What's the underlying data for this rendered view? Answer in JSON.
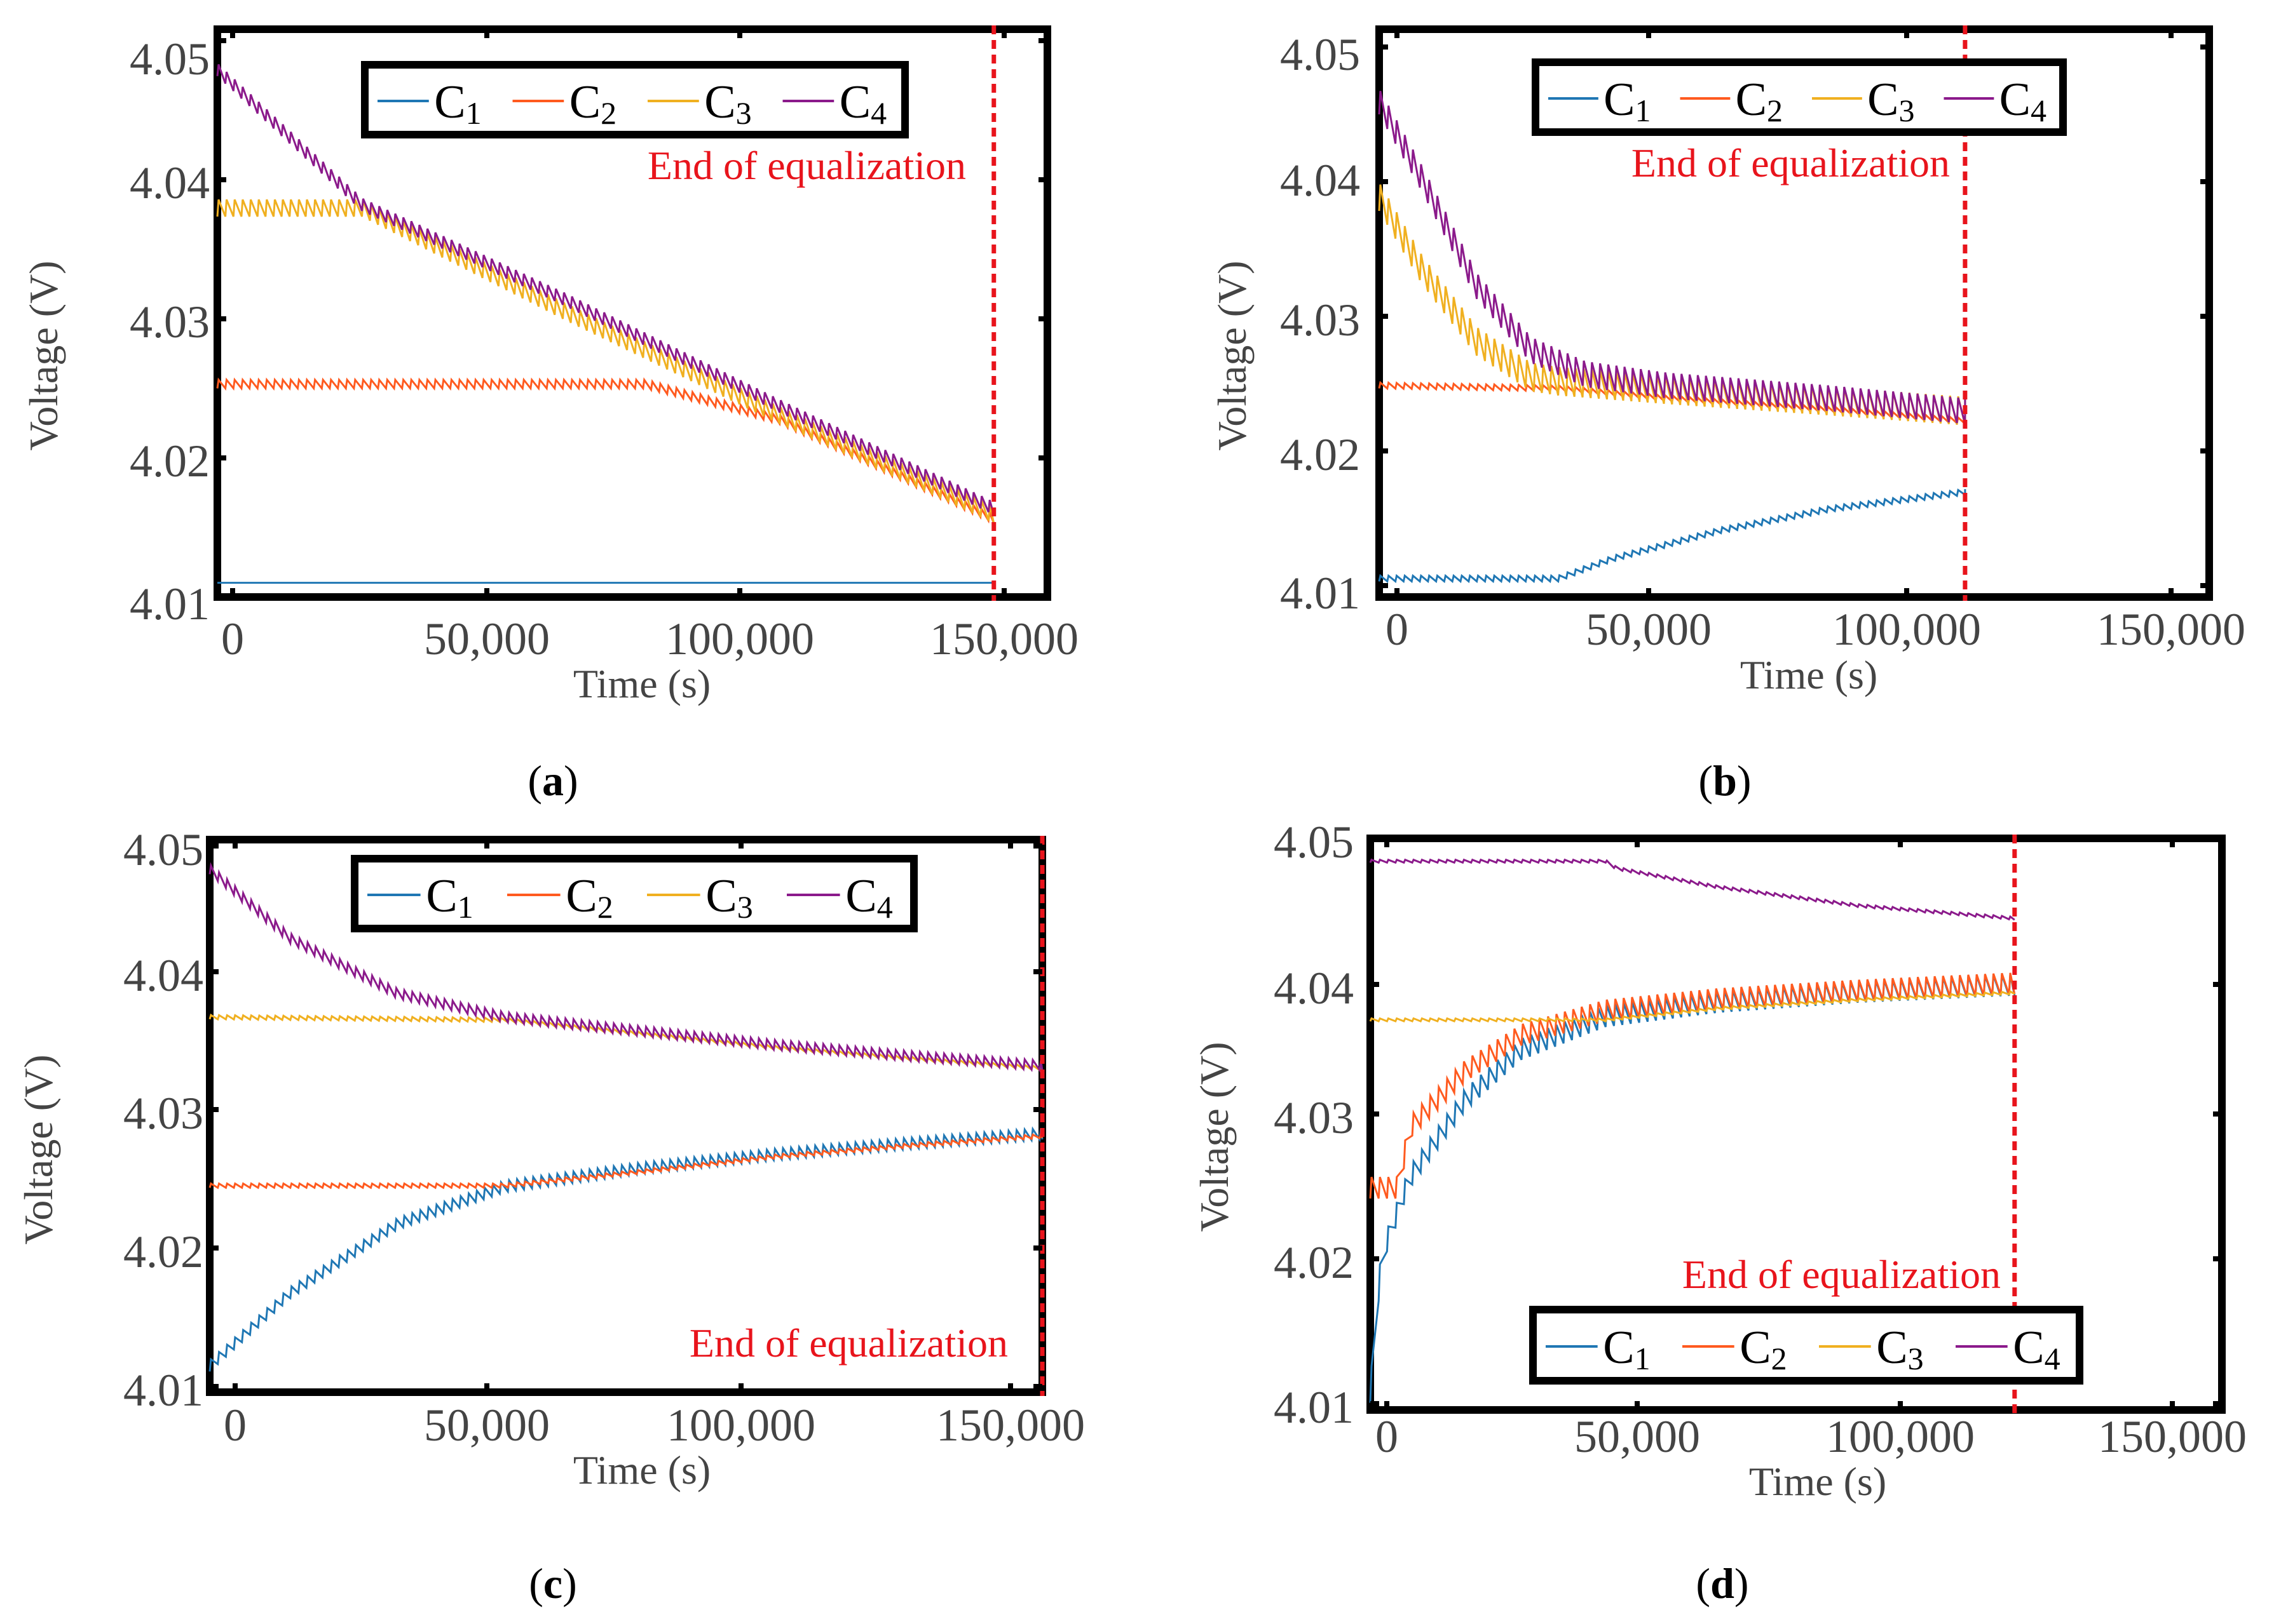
{
  "colors": {
    "C1": "#1f77b4",
    "C2": "#ff5a1f",
    "C3": "#f0b020",
    "C4": "#8b1a8b",
    "end_line": "#e8141c"
  },
  "chart_data": [
    {
      "panel": "a",
      "type": "line",
      "caption": "a",
      "xlabel": "Time  (s)",
      "ylabel": "Voltage  (V)",
      "xlim": [
        -5000,
        150000
      ],
      "ylim": [
        4.01,
        4.05
      ],
      "xticks": [
        "0",
        "50,000",
        "100,000",
        "150,000"
      ],
      "yticks": [
        "4.01",
        "4.02",
        "4.03",
        "4.04",
        "4.05"
      ],
      "legend": [
        "C1",
        "C2",
        "C3",
        "C4"
      ],
      "legend_position": "top",
      "annotation": "End of equalization",
      "end_time": 140000,
      "series": [
        {
          "name": "C1",
          "x": [
            -5000,
            140000
          ],
          "y": [
            4.011,
            4.011
          ],
          "oscillation": 0
        },
        {
          "name": "C2",
          "x": [
            -5000,
            75000,
            100000,
            140000
          ],
          "y": [
            4.0247,
            4.0247,
            4.0222,
            4.0152
          ],
          "oscillation": 0.0006
        },
        {
          "name": "C3",
          "x": [
            -5000,
            22000,
            60000,
            100000,
            140000
          ],
          "y": [
            4.0368,
            4.0368,
            4.0295,
            4.0222,
            4.0152
          ],
          "oscillation": 0.0012
        },
        {
          "name": "C4",
          "x": [
            -5000,
            22000,
            60000,
            100000,
            140000
          ],
          "y": [
            4.0467,
            4.0372,
            4.0305,
            4.023,
            4.0158
          ],
          "oscillation": 0.0009
        }
      ]
    },
    {
      "panel": "b",
      "type": "line",
      "caption": "b",
      "xlabel": "Time  (s)",
      "ylabel": "Voltage  (V)",
      "xlim": [
        -3000,
        150000
      ],
      "ylim": [
        4.01,
        4.05
      ],
      "xticks": [
        "0",
        "50,000",
        "100,000",
        "150,000"
      ],
      "yticks": [
        "4.01",
        "4.02",
        "4.03",
        "4.04",
        "4.05"
      ],
      "legend": [
        "C1",
        "C2",
        "C3",
        "C4"
      ],
      "legend_position": "top",
      "annotation": "End of equalization",
      "end_time": 105000,
      "series": [
        {
          "name": "C1",
          "x": [
            -3000,
            30000,
            40000,
            60000,
            80000,
            105000
          ],
          "y": [
            4.0111,
            4.0111,
            4.0125,
            4.0145,
            4.016,
            4.0172
          ],
          "oscillation": 0.0004
        },
        {
          "name": "C2",
          "x": [
            -3000,
            30000,
            50000,
            80000,
            105000
          ],
          "y": [
            4.0247,
            4.0245,
            4.0238,
            4.023,
            4.0222
          ],
          "oscillation": 0.0004
        },
        {
          "name": "C3",
          "x": [
            -3000,
            5000,
            15000,
            25000,
            30000,
            50000,
            80000,
            105000
          ],
          "y": [
            4.0372,
            4.032,
            4.027,
            4.0245,
            4.0242,
            4.0236,
            4.0228,
            4.0221
          ],
          "oscillation": 0.002
        },
        {
          "name": "C4",
          "x": [
            -3000,
            5000,
            15000,
            25000,
            35000,
            50000,
            80000,
            105000
          ],
          "y": [
            4.044,
            4.0385,
            4.031,
            4.0265,
            4.0248,
            4.024,
            4.0231,
            4.0222
          ],
          "oscillation": 0.0018
        }
      ]
    },
    {
      "panel": "c",
      "type": "line",
      "caption": "c",
      "xlabel": "Time  (s)",
      "ylabel": "Voltage  (V)",
      "xlim": [
        -5000,
        150000
      ],
      "ylim": [
        4.01,
        4.05
      ],
      "xticks": [
        "0",
        "50,000",
        "100,000",
        "150,000"
      ],
      "yticks": [
        "4.01",
        "4.02",
        "4.03",
        "4.04",
        "4.05"
      ],
      "legend": [
        "C1",
        "C2",
        "C3",
        "C4"
      ],
      "legend_position": "top",
      "annotation": "End of equalization",
      "end_time": 150000,
      "series": [
        {
          "name": "C1",
          "x": [
            -5000,
            10000,
            30000,
            50000,
            75000,
            100000,
            125000,
            150000
          ],
          "y": [
            4.0115,
            4.0168,
            4.0218,
            4.0245,
            4.0258,
            4.0268,
            4.0276,
            4.0283
          ],
          "oscillation": 0.0008
        },
        {
          "name": "C2",
          "x": [
            -5000,
            50000,
            75000,
            100000,
            125000,
            150000
          ],
          "y": [
            4.0248,
            4.0248,
            4.0258,
            4.0269,
            4.0277,
            4.0284
          ],
          "oscillation": 0.0003
        },
        {
          "name": "C3",
          "x": [
            -5000,
            50000,
            75000,
            100000,
            125000,
            150000
          ],
          "y": [
            4.037,
            4.0368,
            4.0358,
            4.0348,
            4.034,
            4.0333
          ],
          "oscillation": 0.0003
        },
        {
          "name": "C4",
          "x": [
            -5000,
            10000,
            30000,
            50000,
            75000,
            100000,
            125000,
            150000
          ],
          "y": [
            4.0475,
            4.0425,
            4.0385,
            4.0368,
            4.0358,
            4.0348,
            4.034,
            4.0333
          ],
          "oscillation": 0.0007
        }
      ]
    },
    {
      "panel": "d",
      "type": "line",
      "caption": "d",
      "xlabel": "Time  (s)",
      "ylabel": "Voltage  (V)",
      "xlim": [
        -2000,
        150000
      ],
      "ylim": [
        4.01,
        4.05
      ],
      "xticks": [
        "0",
        "50,000",
        "100,000",
        "150,000"
      ],
      "yticks": [
        "4.01",
        "4.02",
        "4.03",
        "4.04",
        "4.05"
      ],
      "legend": [
        "C1",
        "C2",
        "C3",
        "C4"
      ],
      "legend_position": "bottom",
      "annotation": "End of equalization",
      "end_time": 113000,
      "series": [
        {
          "name": "C1",
          "x": [
            -2000,
            0,
            5000,
            15000,
            25000,
            40000,
            60000,
            85000,
            113000
          ],
          "y": [
            4.0105,
            4.02,
            4.0255,
            4.031,
            4.0345,
            4.0368,
            4.0378,
            4.0385,
            4.039
          ],
          "oscillation": 0.0015
        },
        {
          "name": "C2",
          "x": [
            -2000,
            3000,
            5000,
            15000,
            25000,
            40000,
            60000,
            85000,
            113000
          ],
          "y": [
            4.0248,
            4.0248,
            4.029,
            4.033,
            4.0355,
            4.0372,
            4.038,
            4.0386,
            4.0391
          ],
          "oscillation": 0.0015
        },
        {
          "name": "C3",
          "x": [
            -2000,
            40000,
            60000,
            85000,
            113000
          ],
          "y": [
            4.0372,
            4.0372,
            4.038,
            4.0386,
            4.0391
          ],
          "oscillation": 0.0002
        },
        {
          "name": "C4",
          "x": [
            -2000,
            40000,
            42000,
            60000,
            85000,
            113000
          ],
          "y": [
            4.0483,
            4.0483,
            4.0478,
            4.0465,
            4.0452,
            4.0443
          ],
          "oscillation": 0.0002
        }
      ]
    }
  ]
}
